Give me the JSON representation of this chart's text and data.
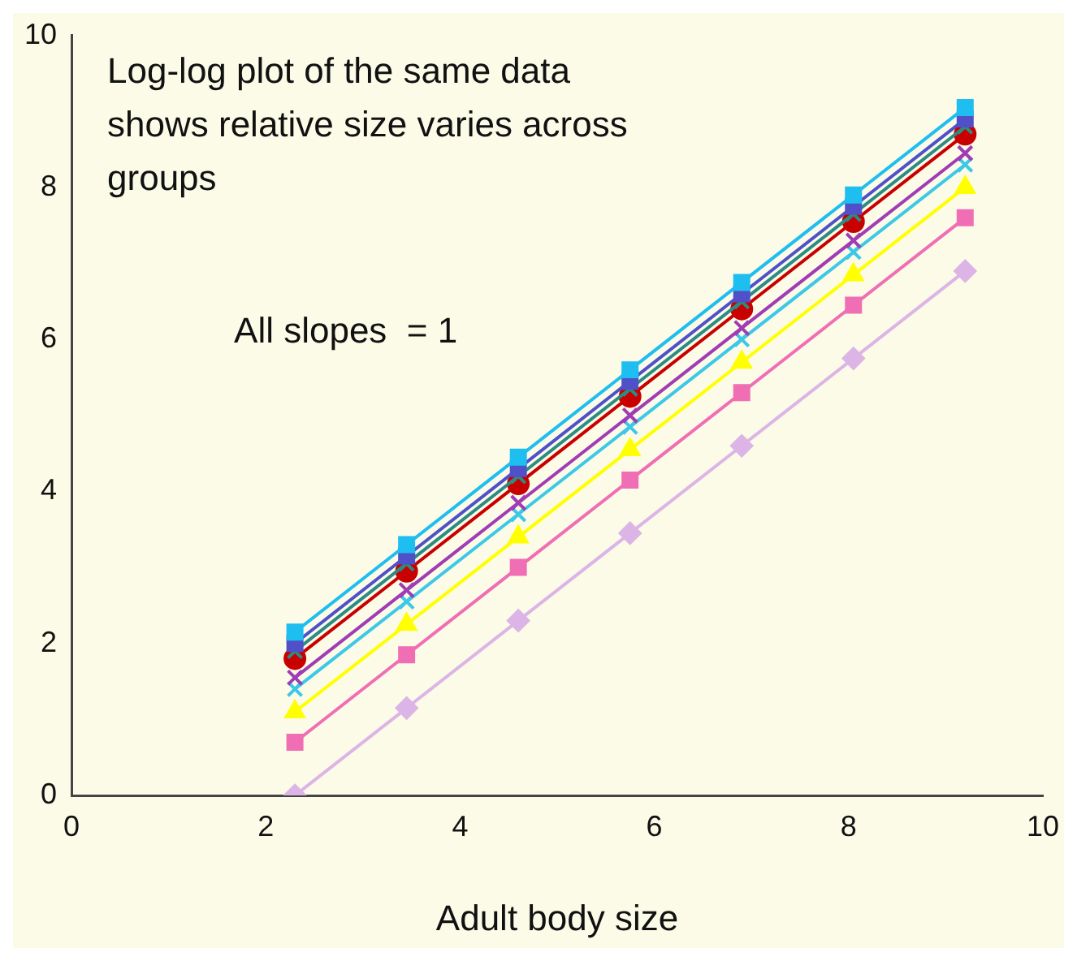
{
  "chart_data": {
    "type": "line",
    "xlabel": "Adult body size",
    "annotations": [
      "Log-log plot of the same data shows relative size varies across groups",
      "All slopes  = 1"
    ],
    "x": [
      2.3,
      3.45,
      4.6,
      5.75,
      6.9,
      8.05,
      9.2
    ],
    "xlim": [
      0,
      10
    ],
    "xticks": [
      0,
      2,
      4,
      6,
      8,
      10
    ],
    "ylim": [
      0,
      10
    ],
    "yticks": [
      0,
      2,
      4,
      6,
      8,
      10
    ],
    "grid": false,
    "legend": false,
    "series": [
      {
        "color": "#dcb4e6",
        "marker": "diamond",
        "values": [
          0,
          1.15,
          2.3,
          3.45,
          4.6,
          5.75,
          6.9
        ]
      },
      {
        "color": "#f06eb4",
        "marker": "square",
        "values": [
          0.7,
          1.85,
          3.0,
          4.15,
          5.3,
          6.45,
          7.6
        ]
      },
      {
        "color": "#ffff00",
        "marker": "triangle",
        "values": [
          1.1,
          2.25,
          3.4,
          4.55,
          5.7,
          6.85,
          8.0
        ]
      },
      {
        "color": "#3cc8e6",
        "marker": "cross",
        "values": [
          1.4,
          2.55,
          3.7,
          4.85,
          6.0,
          7.15,
          8.3
        ]
      },
      {
        "color": "#a03cb4",
        "marker": "cross",
        "values": [
          1.55,
          2.7,
          3.85,
          5.0,
          6.15,
          7.3,
          8.45
        ]
      },
      {
        "color": "#c80000",
        "marker": "circle",
        "values": [
          1.8,
          2.95,
          4.1,
          5.25,
          6.4,
          7.55,
          8.7
        ]
      },
      {
        "color": "#2d8c82",
        "marker": "cross",
        "values": [
          1.9,
          3.05,
          4.2,
          5.35,
          6.5,
          7.65,
          8.8
        ]
      },
      {
        "color": "#5050c8",
        "marker": "square",
        "values": [
          2.0,
          3.15,
          4.3,
          5.45,
          6.6,
          7.75,
          8.9
        ]
      },
      {
        "color": "#1ebef0",
        "marker": "square",
        "values": [
          2.15,
          3.3,
          4.45,
          5.6,
          6.75,
          7.9,
          9.05
        ]
      }
    ]
  }
}
